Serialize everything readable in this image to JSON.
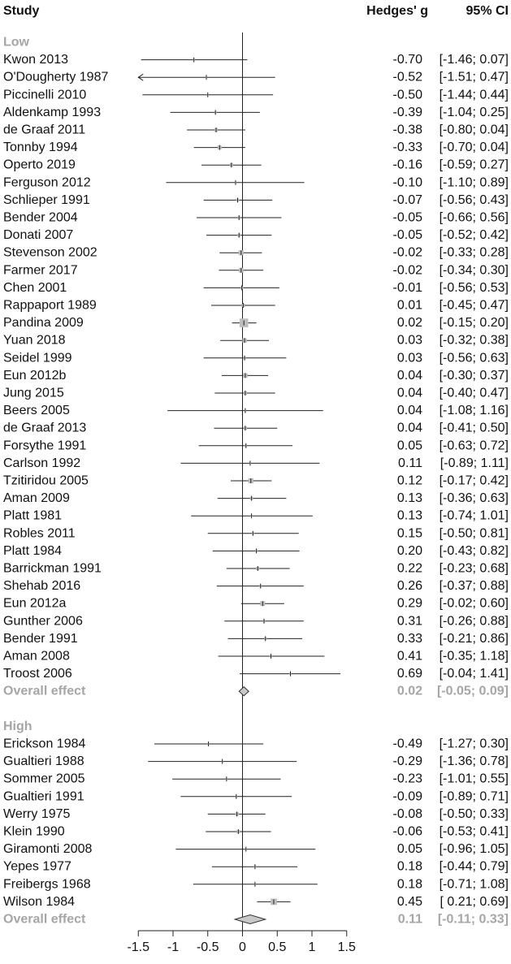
{
  "header": {
    "study": "Study",
    "effect": "Hedges' g",
    "ci": "95% CI"
  },
  "chart_data": {
    "type": "forest",
    "xlim": [
      -1.5,
      1.5
    ],
    "xticks": [
      "-1.5",
      "-1",
      "-0.5",
      "0",
      "0.5",
      "1",
      "1.5"
    ],
    "groups": [
      {
        "name": "Low",
        "studies": [
          {
            "study": "Kwon 2013",
            "g": -0.7,
            "lo": -1.46,
            "hi": 0.07,
            "text": "-0.70",
            "ci": "[-1.46; 0.07]"
          },
          {
            "study": "O'Dougherty 1987",
            "g": -0.52,
            "lo": -1.51,
            "hi": 0.47,
            "text": "-0.52",
            "ci": "[-1.51; 0.47]"
          },
          {
            "study": "Piccinelli 2010",
            "g": -0.5,
            "lo": -1.44,
            "hi": 0.44,
            "text": "-0.50",
            "ci": "[-1.44; 0.44]"
          },
          {
            "study": "Aldenkamp 1993",
            "g": -0.39,
            "lo": -1.04,
            "hi": 0.25,
            "text": "-0.39",
            "ci": "[-1.04; 0.25]"
          },
          {
            "study": "de Graaf 2011",
            "g": -0.38,
            "lo": -0.8,
            "hi": 0.04,
            "text": "-0.38",
            "ci": "[-0.80; 0.04]"
          },
          {
            "study": "Tonnby 1994",
            "g": -0.33,
            "lo": -0.7,
            "hi": 0.04,
            "text": "-0.33",
            "ci": "[-0.70; 0.04]"
          },
          {
            "study": "Operto 2019",
            "g": -0.16,
            "lo": -0.59,
            "hi": 0.27,
            "text": "-0.16",
            "ci": "[-0.59; 0.27]"
          },
          {
            "study": "Ferguson 2012",
            "g": -0.1,
            "lo": -1.1,
            "hi": 0.89,
            "text": "-0.10",
            "ci": "[-1.10; 0.89]"
          },
          {
            "study": "Schlieper 1991",
            "g": -0.07,
            "lo": -0.56,
            "hi": 0.43,
            "text": "-0.07",
            "ci": "[-0.56; 0.43]"
          },
          {
            "study": "Bender 2004",
            "g": -0.05,
            "lo": -0.66,
            "hi": 0.56,
            "text": "-0.05",
            "ci": "[-0.66; 0.56]"
          },
          {
            "study": "Donati 2007",
            "g": -0.05,
            "lo": -0.52,
            "hi": 0.42,
            "text": "-0.05",
            "ci": "[-0.52; 0.42]"
          },
          {
            "study": "Stevenson 2002",
            "g": -0.02,
            "lo": -0.33,
            "hi": 0.28,
            "text": "-0.02",
            "ci": "[-0.33; 0.28]"
          },
          {
            "study": "Farmer 2017",
            "g": -0.02,
            "lo": -0.34,
            "hi": 0.3,
            "text": "-0.02",
            "ci": "[-0.34; 0.30]"
          },
          {
            "study": "Chen 2001",
            "g": -0.01,
            "lo": -0.56,
            "hi": 0.53,
            "text": "-0.01",
            "ci": "[-0.56; 0.53]"
          },
          {
            "study": "Rappaport 1989",
            "g": 0.01,
            "lo": -0.45,
            "hi": 0.47,
            "text": "0.01",
            "ci": "[-0.45; 0.47]"
          },
          {
            "study": "Pandina 2009",
            "g": 0.02,
            "lo": -0.15,
            "hi": 0.2,
            "text": "0.02",
            "ci": "[-0.15; 0.20]"
          },
          {
            "study": "Yuan 2018",
            "g": 0.03,
            "lo": -0.32,
            "hi": 0.38,
            "text": "0.03",
            "ci": "[-0.32; 0.38]"
          },
          {
            "study": "Seidel 1999",
            "g": 0.03,
            "lo": -0.56,
            "hi": 0.63,
            "text": "0.03",
            "ci": "[-0.56; 0.63]"
          },
          {
            "study": "Eun 2012b",
            "g": 0.04,
            "lo": -0.3,
            "hi": 0.37,
            "text": "0.04",
            "ci": "[-0.30; 0.37]"
          },
          {
            "study": "Jung 2015",
            "g": 0.04,
            "lo": -0.4,
            "hi": 0.47,
            "text": "0.04",
            "ci": "[-0.40; 0.47]"
          },
          {
            "study": "Beers 2005",
            "g": 0.04,
            "lo": -1.08,
            "hi": 1.16,
            "text": "0.04",
            "ci": "[-1.08; 1.16]"
          },
          {
            "study": "de Graaf 2013",
            "g": 0.04,
            "lo": -0.41,
            "hi": 0.5,
            "text": "0.04",
            "ci": "[-0.41; 0.50]"
          },
          {
            "study": "Forsythe 1991",
            "g": 0.05,
            "lo": -0.63,
            "hi": 0.72,
            "text": "0.05",
            "ci": "[-0.63; 0.72]"
          },
          {
            "study": "Carlson 1992",
            "g": 0.11,
            "lo": -0.89,
            "hi": 1.11,
            "text": "0.11",
            "ci": "[-0.89; 1.11]"
          },
          {
            "study": "Tzitiridou 2005",
            "g": 0.12,
            "lo": -0.17,
            "hi": 0.42,
            "text": "0.12",
            "ci": "[-0.17; 0.42]"
          },
          {
            "study": "Aman 2009",
            "g": 0.13,
            "lo": -0.36,
            "hi": 0.63,
            "text": "0.13",
            "ci": "[-0.36; 0.63]"
          },
          {
            "study": "Platt 1981",
            "g": 0.13,
            "lo": -0.74,
            "hi": 1.01,
            "text": "0.13",
            "ci": "[-0.74; 1.01]"
          },
          {
            "study": "Robles 2011",
            "g": 0.15,
            "lo": -0.5,
            "hi": 0.81,
            "text": "0.15",
            "ci": "[-0.50; 0.81]"
          },
          {
            "study": "Platt 1984",
            "g": 0.2,
            "lo": -0.43,
            "hi": 0.82,
            "text": "0.20",
            "ci": "[-0.43; 0.82]"
          },
          {
            "study": "Barrickman 1991",
            "g": 0.22,
            "lo": -0.23,
            "hi": 0.68,
            "text": "0.22",
            "ci": "[-0.23; 0.68]"
          },
          {
            "study": "Shehab 2016",
            "g": 0.26,
            "lo": -0.37,
            "hi": 0.88,
            "text": "0.26",
            "ci": "[-0.37; 0.88]"
          },
          {
            "study": "Eun 2012a",
            "g": 0.29,
            "lo": -0.02,
            "hi": 0.6,
            "text": "0.29",
            "ci": "[-0.02; 0.60]"
          },
          {
            "study": "Gunther 2006",
            "g": 0.31,
            "lo": -0.26,
            "hi": 0.88,
            "text": "0.31",
            "ci": "[-0.26; 0.88]"
          },
          {
            "study": "Bender 1991",
            "g": 0.33,
            "lo": -0.21,
            "hi": 0.86,
            "text": "0.33",
            "ci": "[-0.21; 0.86]"
          },
          {
            "study": "Aman 2008",
            "g": 0.41,
            "lo": -0.35,
            "hi": 1.18,
            "text": "0.41",
            "ci": "[-0.35; 1.18]"
          },
          {
            "study": "Troost 2006",
            "g": 0.69,
            "lo": -0.04,
            "hi": 1.41,
            "text": "0.69",
            "ci": "[-0.04; 1.41]"
          }
        ],
        "overall": {
          "label": "Overall effect",
          "g": 0.02,
          "lo": -0.05,
          "hi": 0.09,
          "text": "0.02",
          "ci": "[-0.05; 0.09]"
        }
      },
      {
        "name": "High",
        "studies": [
          {
            "study": "Erickson 1984",
            "g": -0.49,
            "lo": -1.27,
            "hi": 0.3,
            "text": "-0.49",
            "ci": "[-1.27; 0.30]"
          },
          {
            "study": "Gualtieri 1988",
            "g": -0.29,
            "lo": -1.36,
            "hi": 0.78,
            "text": "-0.29",
            "ci": "[-1.36; 0.78]"
          },
          {
            "study": "Sommer 2005",
            "g": -0.23,
            "lo": -1.01,
            "hi": 0.55,
            "text": "-0.23",
            "ci": "[-1.01; 0.55]"
          },
          {
            "study": "Gualtieri 1991",
            "g": -0.09,
            "lo": -0.89,
            "hi": 0.71,
            "text": "-0.09",
            "ci": "[-0.89; 0.71]"
          },
          {
            "study": "Werry 1975",
            "g": -0.08,
            "lo": -0.5,
            "hi": 0.33,
            "text": "-0.08",
            "ci": "[-0.50; 0.33]"
          },
          {
            "study": "Klein 1990",
            "g": -0.06,
            "lo": -0.53,
            "hi": 0.41,
            "text": "-0.06",
            "ci": "[-0.53; 0.41]"
          },
          {
            "study": "Giramonti 2008",
            "g": 0.05,
            "lo": -0.96,
            "hi": 1.05,
            "text": "0.05",
            "ci": "[-0.96; 1.05]"
          },
          {
            "study": "Yepes 1977",
            "g": 0.18,
            "lo": -0.44,
            "hi": 0.79,
            "text": "0.18",
            "ci": "[-0.44; 0.79]"
          },
          {
            "study": "Freibergs 1968",
            "g": 0.18,
            "lo": -0.71,
            "hi": 1.08,
            "text": "0.18",
            "ci": "[-0.71; 1.08]"
          },
          {
            "study": "Wilson 1984",
            "g": 0.45,
            "lo": 0.21,
            "hi": 0.69,
            "text": "0.45",
            "ci": "[ 0.21; 0.69]"
          }
        ],
        "overall": {
          "label": "Overall effect",
          "g": 0.11,
          "lo": -0.11,
          "hi": 0.33,
          "text": "0.11",
          "ci": "[-0.11; 0.33]"
        }
      }
    ]
  }
}
